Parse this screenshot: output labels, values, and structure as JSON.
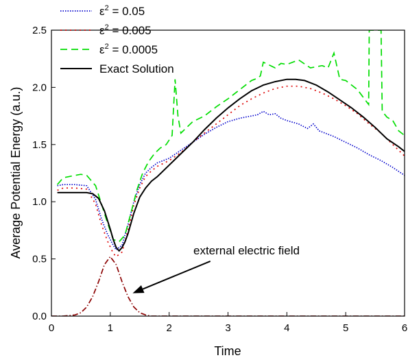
{
  "chart_data": {
    "type": "line",
    "title": "",
    "xlabel": "Time",
    "ylabel": "Average Potential Energy (a.u.)",
    "xlim": [
      0,
      6
    ],
    "ylim": [
      0,
      2.5
    ],
    "x_ticks": [
      "0",
      "1",
      "2",
      "3",
      "4",
      "5",
      "6"
    ],
    "y_ticks": [
      "0.0",
      "0.5",
      "1.0",
      "1.5",
      "2.0",
      "2.5"
    ],
    "grid": false,
    "legend_position": "top-left",
    "series": [
      {
        "name": "ε² = 0.05",
        "label_base": "ε",
        "label_sup": "2",
        "label_rest": " = 0.05",
        "color": "#0000cc",
        "dash": "1.5,2",
        "x": [
          0.1,
          0.2,
          0.4,
          0.6,
          0.75,
          0.85,
          0.95,
          1.05,
          1.1,
          1.2,
          1.3,
          1.4,
          1.5,
          1.6,
          1.7,
          1.8,
          2.0,
          2.2,
          2.4,
          2.6,
          2.8,
          3.0,
          3.2,
          3.4,
          3.5,
          3.6,
          3.7,
          3.8,
          3.9,
          4.0,
          4.2,
          4.35,
          4.45,
          4.55,
          4.7,
          4.8,
          5.0,
          5.2,
          5.4,
          5.6,
          5.8,
          6.0
        ],
        "y": [
          1.14,
          1.15,
          1.15,
          1.14,
          1.02,
          0.85,
          0.72,
          0.62,
          0.58,
          0.62,
          0.8,
          1.0,
          1.15,
          1.25,
          1.3,
          1.34,
          1.38,
          1.45,
          1.52,
          1.59,
          1.65,
          1.7,
          1.73,
          1.75,
          1.76,
          1.79,
          1.76,
          1.77,
          1.73,
          1.71,
          1.68,
          1.64,
          1.68,
          1.62,
          1.59,
          1.57,
          1.52,
          1.47,
          1.41,
          1.36,
          1.3,
          1.23
        ]
      },
      {
        "name": "ε² = 0.005",
        "label_base": "ε",
        "label_sup": "2",
        "label_rest": " = 0.005",
        "color": "#dd0000",
        "dash": "2,5",
        "x": [
          0.1,
          0.2,
          0.4,
          0.6,
          0.75,
          0.85,
          0.95,
          1.05,
          1.1,
          1.2,
          1.3,
          1.4,
          1.5,
          1.6,
          1.7,
          1.8,
          2.0,
          2.2,
          2.4,
          2.6,
          2.8,
          3.0,
          3.2,
          3.4,
          3.6,
          3.8,
          4.0,
          4.2,
          4.4,
          4.6,
          4.8,
          5.0,
          5.2,
          5.4,
          5.6,
          5.8,
          6.0
        ],
        "y": [
          1.1,
          1.12,
          1.12,
          1.11,
          0.98,
          0.8,
          0.66,
          0.55,
          0.52,
          0.56,
          0.75,
          0.97,
          1.12,
          1.22,
          1.27,
          1.31,
          1.36,
          1.43,
          1.52,
          1.6,
          1.68,
          1.76,
          1.84,
          1.9,
          1.95,
          1.99,
          2.01,
          2.01,
          1.99,
          1.95,
          1.9,
          1.84,
          1.77,
          1.68,
          1.6,
          1.5,
          1.4
        ]
      },
      {
        "name": "ε² = 0.0005",
        "label_base": "ε",
        "label_sup": "2",
        "label_rest": " = 0.0005",
        "color": "#00dd00",
        "dash": "10,6",
        "x": [
          0.1,
          0.2,
          0.4,
          0.5,
          0.6,
          0.75,
          0.85,
          0.95,
          1.05,
          1.15,
          1.25,
          1.35,
          1.45,
          1.55,
          1.65,
          1.75,
          1.85,
          1.95,
          2.05,
          2.1,
          2.15,
          2.2,
          2.3,
          2.4,
          2.6,
          2.8,
          3.0,
          3.2,
          3.3,
          3.4,
          3.5,
          3.55,
          3.6,
          3.8,
          3.9,
          4.0,
          4.2,
          4.4,
          4.6,
          4.7,
          4.8,
          4.9,
          5.0,
          5.2,
          5.39,
          5.4,
          5.41,
          5.45,
          5.5,
          5.55,
          5.6,
          5.62,
          5.7,
          5.8,
          5.9,
          6.0
        ],
        "y": [
          1.15,
          1.21,
          1.23,
          1.24,
          1.23,
          1.14,
          0.98,
          0.82,
          0.67,
          0.65,
          0.71,
          0.9,
          1.1,
          1.25,
          1.35,
          1.42,
          1.47,
          1.5,
          1.58,
          2.07,
          1.75,
          1.6,
          1.65,
          1.7,
          1.75,
          1.83,
          1.9,
          1.98,
          2.02,
          2.06,
          2.08,
          2.1,
          2.22,
          2.17,
          2.21,
          2.2,
          2.24,
          2.17,
          2.19,
          2.17,
          2.3,
          2.07,
          2.06,
          1.98,
          1.85,
          2.5,
          2.5,
          2.5,
          2.5,
          2.5,
          2.5,
          1.79,
          1.74,
          1.71,
          1.62,
          1.58
        ]
      },
      {
        "name": "Exact Solution",
        "label_base": "Exact Solution",
        "label_sup": "",
        "label_rest": "",
        "color": "#000000",
        "dash": "",
        "x": [
          0.1,
          0.2,
          0.4,
          0.6,
          0.7,
          0.8,
          0.9,
          1.0,
          1.05,
          1.1,
          1.15,
          1.2,
          1.25,
          1.3,
          1.4,
          1.5,
          1.6,
          1.7,
          1.8,
          2.0,
          2.2,
          2.4,
          2.6,
          2.8,
          3.0,
          3.2,
          3.4,
          3.6,
          3.8,
          4.0,
          4.15,
          4.3,
          4.5,
          4.7,
          4.9,
          5.1,
          5.3,
          5.5,
          5.7,
          5.9,
          6.0
        ],
        "y": [
          1.08,
          1.08,
          1.08,
          1.08,
          1.07,
          1.03,
          0.92,
          0.76,
          0.67,
          0.6,
          0.57,
          0.6,
          0.65,
          0.72,
          0.9,
          1.04,
          1.12,
          1.18,
          1.22,
          1.32,
          1.42,
          1.52,
          1.63,
          1.73,
          1.82,
          1.9,
          1.97,
          2.02,
          2.05,
          2.07,
          2.07,
          2.06,
          2.02,
          1.96,
          1.89,
          1.82,
          1.74,
          1.65,
          1.55,
          1.48,
          1.44
        ]
      },
      {
        "name": "external electric field",
        "color": "#8b0000",
        "dash": "8,3,1.5,3",
        "x": [
          0.0,
          0.2,
          0.4,
          0.5,
          0.6,
          0.7,
          0.8,
          0.9,
          1.0,
          1.1,
          1.2,
          1.3,
          1.4,
          1.5,
          1.6,
          1.7,
          1.8,
          2.0,
          3.0,
          4.0,
          5.0,
          6.0
        ],
        "y": [
          0.0,
          0.0,
          0.01,
          0.03,
          0.08,
          0.17,
          0.3,
          0.45,
          0.52,
          0.45,
          0.3,
          0.17,
          0.08,
          0.03,
          0.01,
          0.0,
          0.0,
          0.0,
          0.0,
          0.0,
          0.0,
          0.0
        ]
      }
    ],
    "annotation": {
      "text": "external electric field",
      "arrow_from": [
        2.7,
        0.48
      ],
      "arrow_to": [
        1.38,
        0.2
      ]
    }
  }
}
